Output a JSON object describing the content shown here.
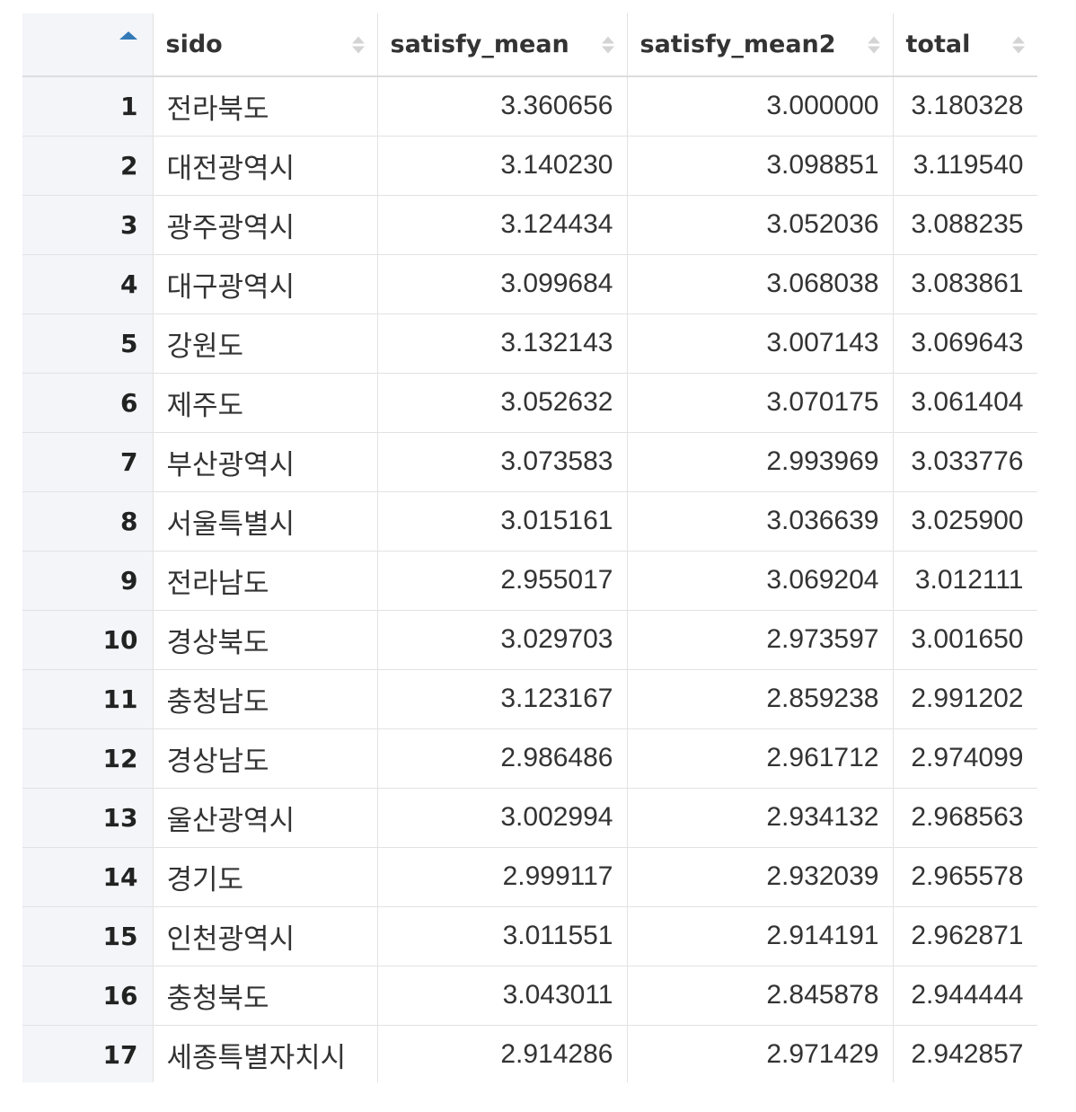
{
  "table": {
    "columns": [
      "sido",
      "satisfy_mean",
      "satisfy_mean2",
      "total"
    ],
    "rows": [
      {
        "idx": "1",
        "sido": "전라북도",
        "satisfy_mean": "3.360656",
        "satisfy_mean2": "3.000000",
        "total": "3.180328"
      },
      {
        "idx": "2",
        "sido": "대전광역시",
        "satisfy_mean": "3.140230",
        "satisfy_mean2": "3.098851",
        "total": "3.119540"
      },
      {
        "idx": "3",
        "sido": "광주광역시",
        "satisfy_mean": "3.124434",
        "satisfy_mean2": "3.052036",
        "total": "3.088235"
      },
      {
        "idx": "4",
        "sido": "대구광역시",
        "satisfy_mean": "3.099684",
        "satisfy_mean2": "3.068038",
        "total": "3.083861"
      },
      {
        "idx": "5",
        "sido": "강원도",
        "satisfy_mean": "3.132143",
        "satisfy_mean2": "3.007143",
        "total": "3.069643"
      },
      {
        "idx": "6",
        "sido": "제주도",
        "satisfy_mean": "3.052632",
        "satisfy_mean2": "3.070175",
        "total": "3.061404"
      },
      {
        "idx": "7",
        "sido": "부산광역시",
        "satisfy_mean": "3.073583",
        "satisfy_mean2": "2.993969",
        "total": "3.033776"
      },
      {
        "idx": "8",
        "sido": "서울특별시",
        "satisfy_mean": "3.015161",
        "satisfy_mean2": "3.036639",
        "total": "3.025900"
      },
      {
        "idx": "9",
        "sido": "전라남도",
        "satisfy_mean": "2.955017",
        "satisfy_mean2": "3.069204",
        "total": "3.012111"
      },
      {
        "idx": "10",
        "sido": "경상북도",
        "satisfy_mean": "3.029703",
        "satisfy_mean2": "2.973597",
        "total": "3.001650"
      },
      {
        "idx": "11",
        "sido": "충청남도",
        "satisfy_mean": "3.123167",
        "satisfy_mean2": "2.859238",
        "total": "2.991202"
      },
      {
        "idx": "12",
        "sido": "경상남도",
        "satisfy_mean": "2.986486",
        "satisfy_mean2": "2.961712",
        "total": "2.974099"
      },
      {
        "idx": "13",
        "sido": "울산광역시",
        "satisfy_mean": "3.002994",
        "satisfy_mean2": "2.934132",
        "total": "2.968563"
      },
      {
        "idx": "14",
        "sido": "경기도",
        "satisfy_mean": "2.999117",
        "satisfy_mean2": "2.932039",
        "total": "2.965578"
      },
      {
        "idx": "15",
        "sido": "인천광역시",
        "satisfy_mean": "3.011551",
        "satisfy_mean2": "2.914191",
        "total": "2.962871"
      },
      {
        "idx": "16",
        "sido": "충청북도",
        "satisfy_mean": "3.043011",
        "satisfy_mean2": "2.845878",
        "total": "2.944444"
      },
      {
        "idx": "17",
        "sido": "세종특별자치시",
        "satisfy_mean": "2.914286",
        "satisfy_mean2": "2.971429",
        "total": "2.942857"
      }
    ]
  },
  "sort_state": {
    "column": "row-index",
    "direction": "ascending"
  },
  "colors": {
    "active_sort": "#337ab7",
    "inactive_sort": "#d4d4d4",
    "index_bg": "#f3f5f9",
    "grid": "#e2e2e2"
  },
  "icons": {
    "active": "sort-ascending-icon",
    "inactive": "sort-both-icon"
  }
}
